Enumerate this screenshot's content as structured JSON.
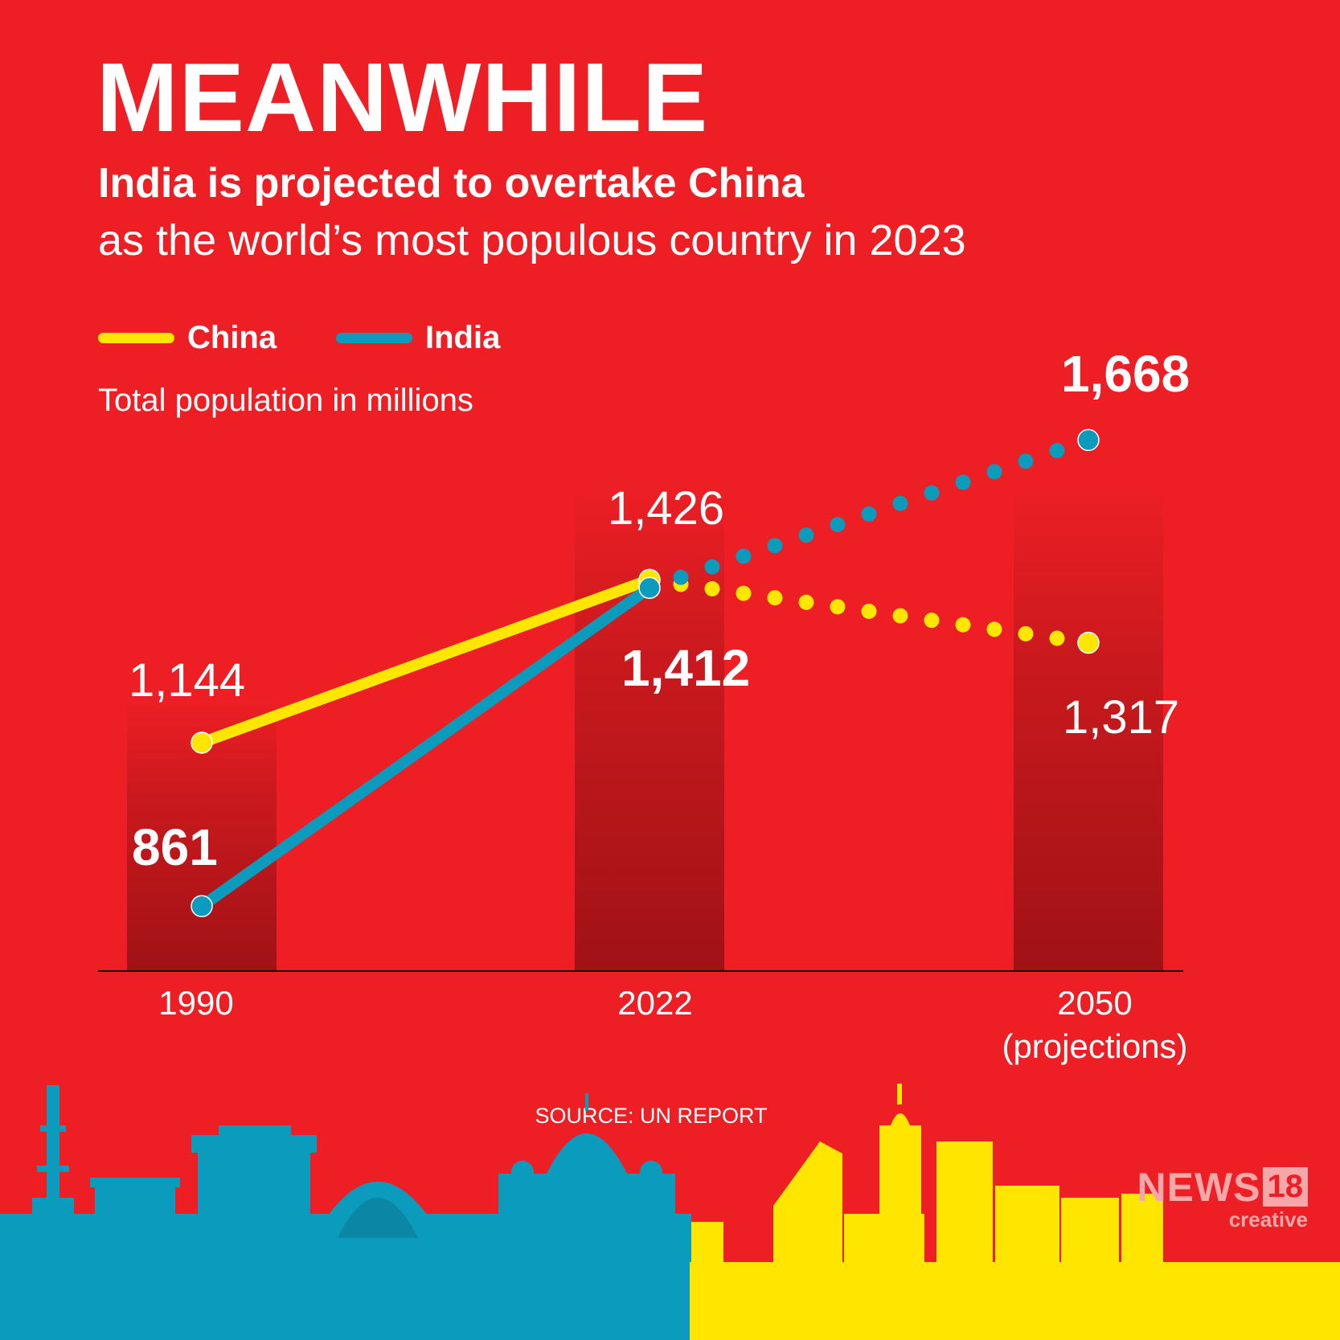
{
  "header": {
    "headline": "MEANWHILE",
    "subtitle_bold": "India is projected to overtake China",
    "subtitle_rest": "as the world’s most populous country in 2023"
  },
  "legend": {
    "china_label": "China",
    "india_label": "India"
  },
  "unit_label": "Total population in millions",
  "source": "SOURCE: UN REPORT",
  "brand": {
    "news": "NEWS",
    "number": "18",
    "tagline": "creative"
  },
  "colors": {
    "background": "#ed1f24",
    "china": "#ffe600",
    "india": "#0a9bbd",
    "column": "#a01216",
    "text": "#ffffff"
  },
  "chart_data": {
    "type": "line",
    "title": "India is projected to overtake China",
    "ylabel": "Total population in millions",
    "categories": [
      "1990",
      "2022",
      "2050"
    ],
    "category_notes": [
      "",
      "",
      "(projections)"
    ],
    "ylim": [
      860,
      1670
    ],
    "projection_from_index": 1,
    "series": [
      {
        "name": "China",
        "values": [
          1144,
          1426,
          1317
        ],
        "labels": [
          "1,144",
          "1,426",
          "1,317"
        ],
        "bold": [
          false,
          false,
          false
        ]
      },
      {
        "name": "India",
        "values": [
          861,
          1412,
          1668
        ],
        "labels": [
          "861",
          "1,412",
          "1,668"
        ],
        "bold": [
          true,
          true,
          true
        ]
      }
    ]
  }
}
